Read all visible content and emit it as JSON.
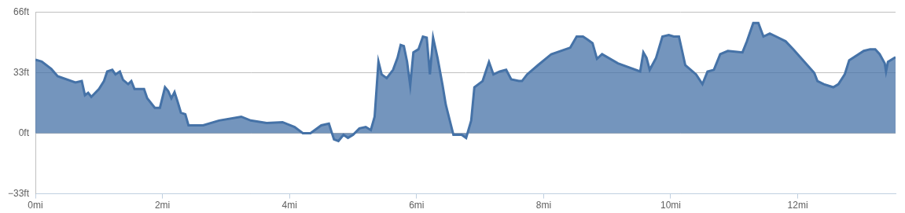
{
  "chart_data": {
    "type": "area",
    "color": "#4572a7",
    "grid": true,
    "x": [
      0,
      0.1,
      0.25,
      0.35,
      0.63,
      0.73,
      0.78,
      0.83,
      0.88,
      1.0,
      1.08,
      1.13,
      1.21,
      1.26,
      1.33,
      1.38,
      1.46,
      1.51,
      1.56,
      1.71,
      1.76,
      1.88,
      1.96,
      2.04,
      2.09,
      2.14,
      2.19,
      2.24,
      2.29,
      2.36,
      2.41,
      2.64,
      2.89,
      3.24,
      3.39,
      3.64,
      3.89,
      4.08,
      4.21,
      4.33,
      4.5,
      4.62,
      4.7,
      4.77,
      4.85,
      4.92,
      5.0,
      5.1,
      5.2,
      5.28,
      5.34,
      5.4,
      5.45,
      5.53,
      5.63,
      5.7,
      5.75,
      5.8,
      5.85,
      5.9,
      5.95,
      6.03,
      6.1,
      6.16,
      6.21,
      6.26,
      6.33,
      6.41,
      6.46,
      6.58,
      6.71,
      6.78,
      6.86,
      6.91,
      7.04,
      7.14,
      7.21,
      7.31,
      7.41,
      7.49,
      7.61,
      7.66,
      7.74,
      7.91,
      8.12,
      8.42,
      8.52,
      8.62,
      8.69,
      8.77,
      8.84,
      8.92,
      9.17,
      9.52,
      9.57,
      9.62,
      9.67,
      9.77,
      9.87,
      9.97,
      10.05,
      10.13,
      10.23,
      10.4,
      10.5,
      10.58,
      10.68,
      10.78,
      10.9,
      11.13,
      11.2,
      11.3,
      11.38,
      11.46,
      11.56,
      11.66,
      11.81,
      11.93,
      12.26,
      12.31,
      12.41,
      12.56,
      12.64,
      12.74,
      12.81,
      13.04,
      13.14,
      13.22,
      13.29,
      13.37,
      13.39,
      13.42,
      13.54
    ],
    "values": [
      40,
      39,
      35,
      31,
      27.6,
      28.4,
      20.7,
      22,
      19.8,
      24,
      28.4,
      33.6,
      34.5,
      32,
      33.6,
      29,
      26.7,
      28.4,
      24,
      24,
      19,
      13.8,
      13.8,
      25,
      23,
      19,
      22.4,
      17,
      11.2,
      10.3,
      4.3,
      4.3,
      6.9,
      9,
      6.9,
      5.6,
      6,
      3.4,
      0,
      0,
      4.3,
      5.2,
      -3.4,
      -4.3,
      -0.9,
      -2.6,
      -0.9,
      2.6,
      3.4,
      1.7,
      9,
      39,
      32,
      30,
      34.5,
      41,
      48,
      47.4,
      39,
      26,
      44,
      45.7,
      52.6,
      52,
      32,
      52,
      41,
      26,
      15.5,
      -0.9,
      -0.9,
      -2.6,
      6.9,
      25,
      28.4,
      38.8,
      32,
      33.6,
      34.5,
      29.3,
      28.4,
      28.4,
      32,
      37,
      43,
      46.6,
      52.6,
      52.6,
      51,
      49,
      40.5,
      43,
      38,
      33.6,
      44,
      41,
      34.5,
      41,
      52.6,
      53.4,
      52.6,
      52.6,
      37,
      32,
      26.7,
      33.6,
      34.5,
      43,
      44.8,
      44,
      50,
      60,
      60,
      52.6,
      54.3,
      52.6,
      50,
      45.7,
      32.8,
      28.4,
      26.7,
      25,
      26.7,
      32,
      39.7,
      44.8,
      45.7,
      45.7,
      43,
      38,
      33.6,
      38.8,
      41.4
    ],
    "xlim": [
      0,
      13.54
    ],
    "xticks": [
      {
        "value": 0,
        "label": "0mi"
      },
      {
        "value": 2,
        "label": "2mi"
      },
      {
        "value": 4,
        "label": "4mi"
      },
      {
        "value": 6,
        "label": "6mi"
      },
      {
        "value": 8,
        "label": "8mi"
      },
      {
        "value": 10,
        "label": "10mi"
      },
      {
        "value": 12,
        "label": "12mi"
      }
    ],
    "ylim": [
      -33,
      66
    ],
    "yticks": [
      {
        "value": -33,
        "label": "−33ft"
      },
      {
        "value": 0,
        "label": "0ft"
      },
      {
        "value": 33,
        "label": "33ft"
      },
      {
        "value": 66,
        "label": "66ft"
      }
    ]
  }
}
